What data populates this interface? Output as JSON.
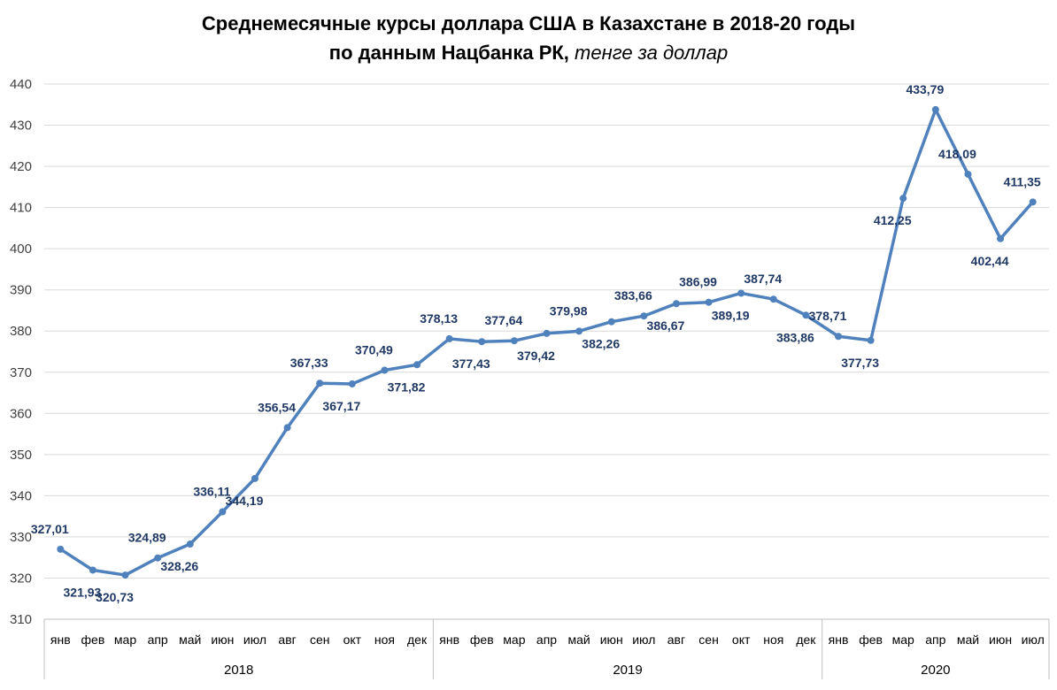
{
  "chart_data": {
    "type": "line",
    "title_line1": "Среднемесячные курсы доллара США в Казахстане в 2018-20 годы",
    "title_line2": "по данным Нацбанка РК,",
    "title_unit": "тенге за доллар",
    "categories": [
      "янв",
      "фев",
      "мар",
      "апр",
      "май",
      "июн",
      "июл",
      "авг",
      "сен",
      "окт",
      "ноя",
      "дек",
      "янв",
      "фев",
      "мар",
      "апр",
      "май",
      "июн",
      "июл",
      "авг",
      "сен",
      "окт",
      "ноя",
      "дек",
      "янв",
      "фев",
      "мар",
      "апр",
      "май",
      "июн",
      "июл"
    ],
    "years": [
      {
        "label": "2018",
        "start": 0,
        "count": 12
      },
      {
        "label": "2019",
        "start": 12,
        "count": 12
      },
      {
        "label": "2020",
        "start": 24,
        "count": 7
      }
    ],
    "values": [
      327.01,
      321.93,
      320.73,
      324.89,
      328.26,
      336.11,
      344.19,
      356.54,
      367.33,
      367.17,
      370.49,
      371.82,
      378.13,
      377.43,
      377.64,
      379.42,
      379.98,
      382.26,
      383.66,
      386.67,
      386.99,
      389.19,
      387.74,
      383.86,
      378.71,
      377.73,
      412.25,
      433.79,
      418.09,
      402.44,
      411.35
    ],
    "value_labels": [
      "327,01",
      "321,93",
      "320,73",
      "324,89",
      "328,26",
      "336,11",
      "344,19",
      "356,54",
      "367,33",
      "367,17",
      "370,49",
      "371,82",
      "378,13",
      "377,43",
      "377,64",
      "379,42",
      "379,98",
      "382,26",
      "383,66",
      "386,67",
      "386,99",
      "389,19",
      "387,74",
      "383,86",
      "378,71",
      "377,73",
      "412,25",
      "433,79",
      "418,09",
      "402,44",
      "411,35"
    ],
    "label_above": [
      true,
      false,
      false,
      true,
      false,
      true,
      false,
      true,
      true,
      false,
      true,
      false,
      true,
      false,
      true,
      false,
      true,
      false,
      true,
      false,
      true,
      false,
      true,
      false,
      true,
      false,
      false,
      true,
      true,
      false,
      true
    ],
    "ylim": [
      310,
      440
    ],
    "yticks": [
      310,
      320,
      330,
      340,
      350,
      360,
      370,
      380,
      390,
      400,
      410,
      420,
      430,
      440
    ],
    "grid": true,
    "legend": "none",
    "line_color": "#4f81bd",
    "label_color": "#1f3864"
  }
}
